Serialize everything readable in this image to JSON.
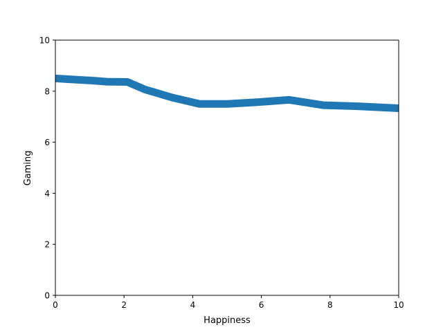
{
  "chart_data": {
    "type": "line",
    "xlabel": "Happiness",
    "ylabel": "Gaming",
    "xlim": [
      0,
      10
    ],
    "ylim": [
      0,
      10
    ],
    "grid": false,
    "xticks": [
      0,
      2,
      4,
      6,
      8,
      10
    ],
    "xtick_labels": [
      "0",
      "2",
      "4",
      "6",
      "8",
      "10"
    ],
    "yticks": [
      0,
      2,
      4,
      6,
      8,
      10
    ],
    "ytick_labels": [
      "0",
      "2",
      "4",
      "6",
      "8",
      "10"
    ],
    "series": [
      {
        "color": "#1f77b4",
        "x": [
          0,
          0.5,
          1.0,
          1.5,
          2.1,
          2.6,
          3.4,
          4.2,
          5.0,
          5.8,
          6.8,
          7.8,
          8.8,
          10.0
        ],
        "y": [
          8.5,
          8.46,
          8.42,
          8.37,
          8.36,
          8.07,
          7.75,
          7.5,
          7.5,
          7.56,
          7.66,
          7.45,
          7.41,
          7.33
        ]
      }
    ]
  }
}
